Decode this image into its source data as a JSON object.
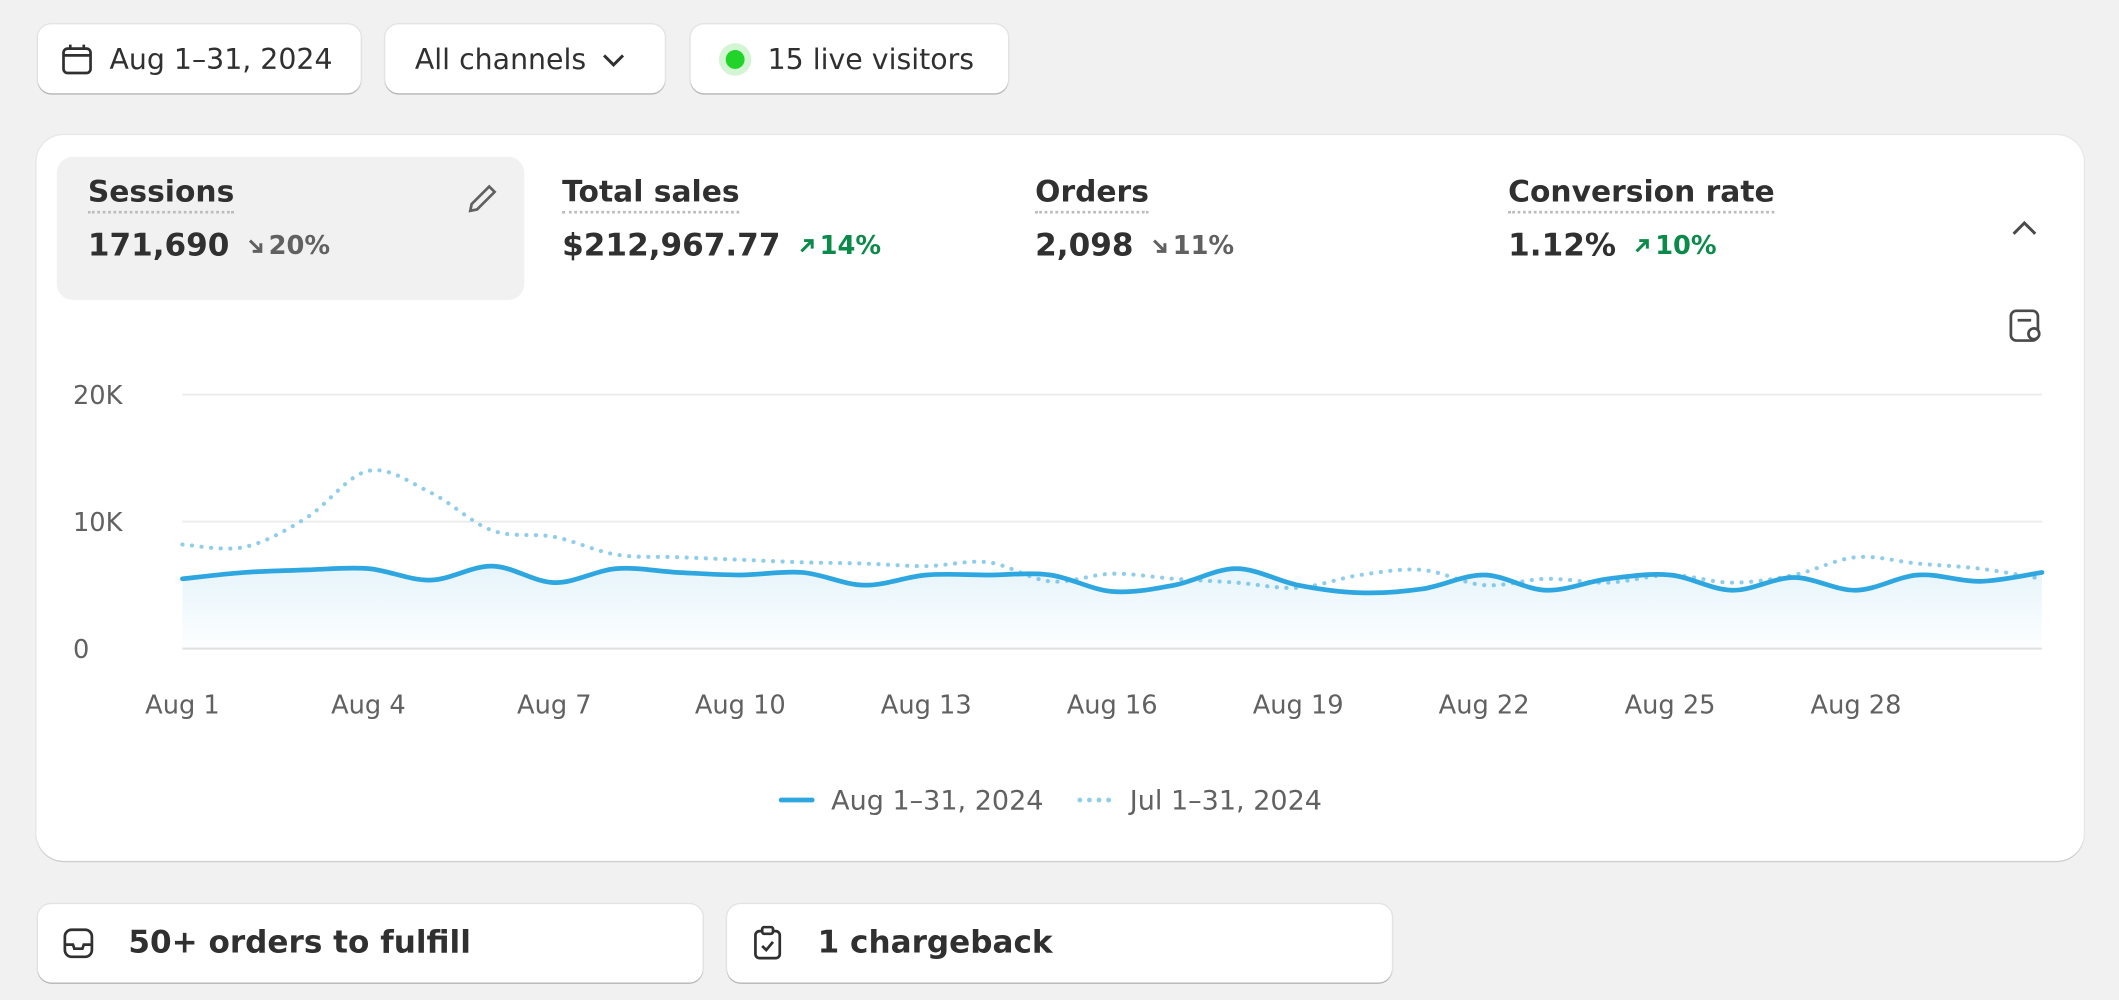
{
  "toolbar": {
    "date_range": "Aug 1–31, 2024",
    "channels": "All channels",
    "live_visitors": "15 live visitors"
  },
  "metrics": [
    {
      "label": "Sessions",
      "value": "171,690",
      "change": "20%",
      "direction": "down"
    },
    {
      "label": "Total sales",
      "value": "$212,967.77",
      "change": "14%",
      "direction": "up"
    },
    {
      "label": "Orders",
      "value": "2,098",
      "change": "11%",
      "direction": "down"
    },
    {
      "label": "Conversion rate",
      "value": "1.12%",
      "change": "10%",
      "direction": "up"
    }
  ],
  "chart_data": {
    "type": "line",
    "categories": [
      "Aug 1",
      null,
      null,
      "Aug 4",
      null,
      null,
      "Aug 7",
      null,
      null,
      "Aug 10",
      null,
      null,
      "Aug 13",
      null,
      null,
      "Aug 16",
      null,
      null,
      "Aug 19",
      null,
      null,
      "Aug 22",
      null,
      null,
      "Aug 25",
      null,
      null,
      "Aug 28",
      null,
      null,
      null
    ],
    "series": [
      {
        "name": "Aug 1–31, 2024",
        "color": "#2ea7e0",
        "style": "solid",
        "values": [
          5500,
          6000,
          6200,
          6300,
          5400,
          6500,
          5200,
          6300,
          6000,
          5800,
          6000,
          5000,
          5800,
          5800,
          5800,
          4500,
          5000,
          6300,
          5000,
          4400,
          4700,
          5800,
          4600,
          5500,
          5800,
          4600,
          5600,
          4600,
          5800,
          5300,
          6000
        ]
      },
      {
        "name": "Jul 1–31, 2024",
        "color": "#8fcdeb",
        "style": "dotted",
        "values": [
          8200,
          8000,
          10300,
          14000,
          12300,
          9300,
          8800,
          7400,
          7200,
          7000,
          6800,
          6700,
          6500,
          6800,
          5300,
          5900,
          5500,
          5200,
          4800,
          5800,
          6200,
          5000,
          5500,
          5200,
          5800,
          5200,
          5800,
          7200,
          6700,
          6300,
          5500
        ]
      }
    ],
    "ylim": [
      0,
      20000
    ],
    "yticks": [
      0,
      {
        "value": 10000,
        "label": "10K"
      },
      {
        "value": 20000,
        "label": "20K"
      }
    ],
    "grid": true
  },
  "tasks": [
    "50+ orders to fulfill",
    "1 chargeback"
  ]
}
